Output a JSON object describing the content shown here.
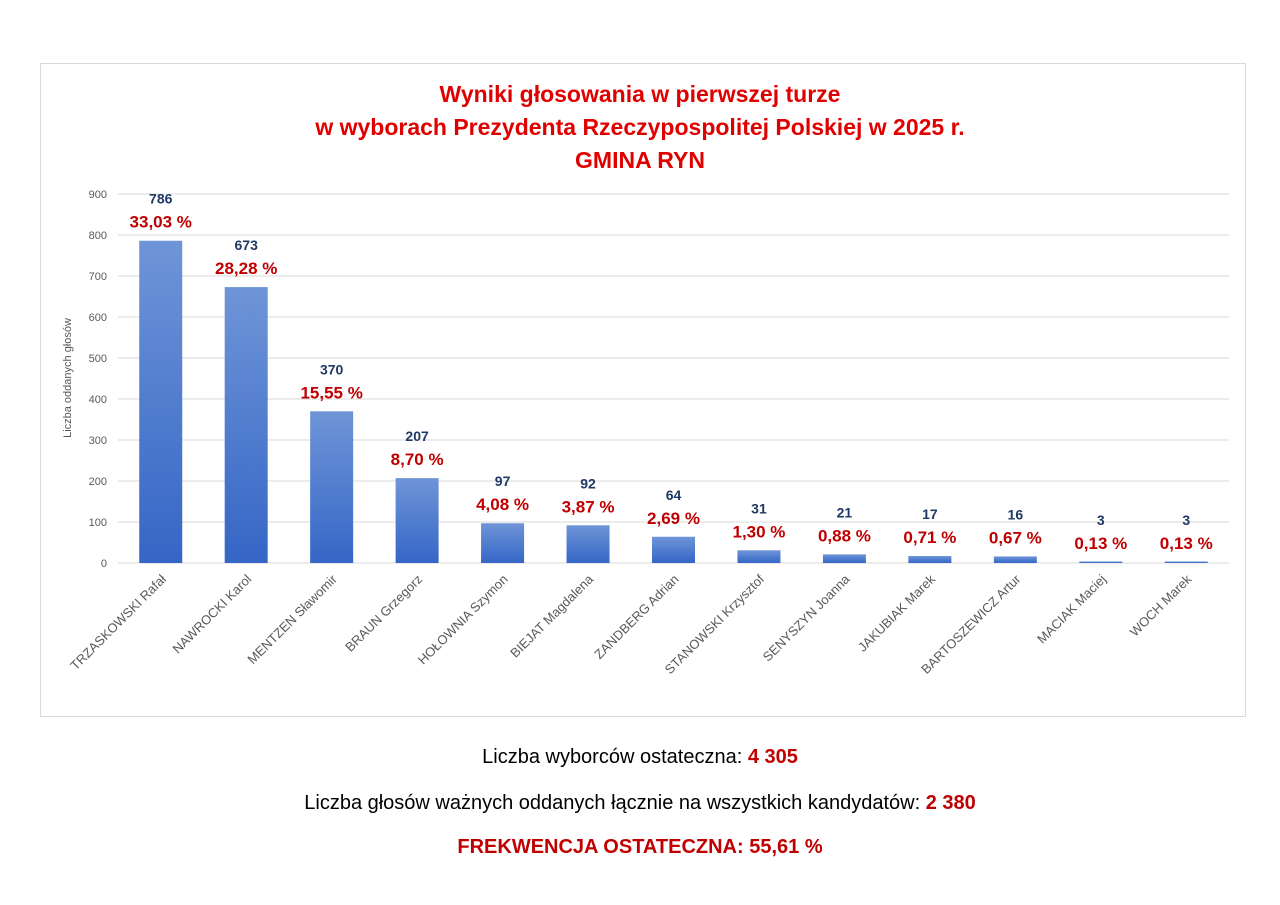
{
  "chart_data": {
    "type": "bar",
    "title": [
      "Wyniki głosowania w pierwszej turze",
      "w wyborach Prezydenta Rzeczypospolitej Polskiej w 2025 r.",
      "GMINA RYN"
    ],
    "ylabel": "Liczba oddanych głosów",
    "xlabel": "",
    "ylim": [
      0,
      900
    ],
    "yticks": [
      0,
      100,
      200,
      300,
      400,
      500,
      600,
      700,
      800,
      900
    ],
    "grid": true,
    "categories": [
      "TRZASKOWSKI Rafał",
      "NAWROCKI Karol",
      "MENTZEN Sławomir",
      "BRAUN Grzegorz",
      "HOŁOWNIA Szymon",
      "BIEJAT Magdalena",
      "ZANDBERG Adrian",
      "STANOWSKI Krzysztof",
      "SENYSZYN Joanna",
      "JAKUBIAK Marek",
      "BARTOSZEWICZ Artur",
      "MACIAK Maciej",
      "WOCH Marek"
    ],
    "values": [
      786,
      673,
      370,
      207,
      97,
      92,
      64,
      31,
      21,
      17,
      16,
      3,
      3
    ],
    "percent_labels": [
      "33,03 %",
      "28,28 %",
      "15,55 %",
      "8,70 %",
      "4,08 %",
      "3,87 %",
      "2,69 %",
      "1,30 %",
      "0,88 %",
      "0,71 %",
      "0,67 %",
      "0,13 %",
      "0,13 %"
    ],
    "colors": {
      "bar_top": "#6f95d8",
      "bar_bottom": "#3566c6",
      "value_label": "#1f3864",
      "percent_label": "#c00000",
      "title": "#e00000",
      "grid": "#d9d9d9"
    }
  },
  "summary": {
    "voters_label": "Liczba wyborców ostateczna: ",
    "voters_value": "4 305",
    "votes_label": "Liczba głosów ważnych oddanych łącznie na wszystkich kandydatów: ",
    "votes_value": "2 380",
    "turnout_text": "FREKWENCJA OSTATECZNA: 55,61 %"
  }
}
